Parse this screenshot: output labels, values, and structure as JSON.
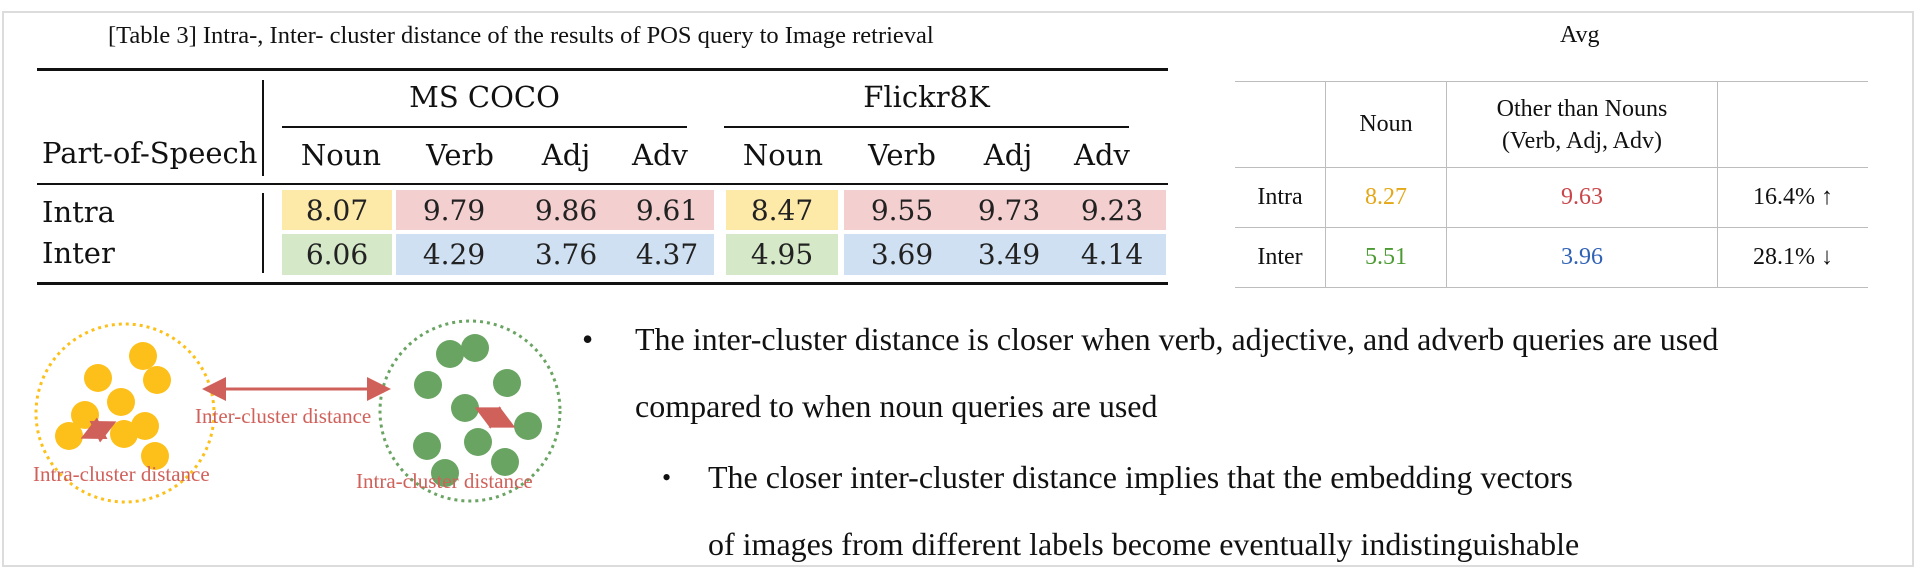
{
  "colors": {
    "yellow_fill": "#fde9a8",
    "pink_fill": "#f3cfcf",
    "green_fill": "#d5e8c8",
    "blue_fill": "#cfe0f2",
    "noun_intra_text": "#e4a717",
    "other_intra_text": "#c9464a",
    "noun_inter_text": "#4c9a33",
    "other_inter_text": "#2f62b5",
    "yellow_cluster": "#fdc01a",
    "green_cluster": "#6aa463",
    "arrow": "#d0605a"
  },
  "table3": {
    "caption": "[Table 3] Intra-, Inter- cluster distance of the results of POS query to Image retrieval",
    "row_header": "Part-of-Speech",
    "datasets": [
      "MS COCO",
      "Flickr8K"
    ],
    "columns": [
      "Noun",
      "Verb",
      "Adj",
      "Adv",
      "Noun",
      "Verb",
      "Adj",
      "Adv"
    ],
    "rows": [
      {
        "label": "Intra",
        "values": [
          "8.07",
          "9.79",
          "9.86",
          "9.61",
          "8.47",
          "9.55",
          "9.73",
          "9.23"
        ]
      },
      {
        "label": "Inter",
        "values": [
          "6.06",
          "4.29",
          "3.76",
          "4.37",
          "4.95",
          "3.69",
          "3.49",
          "4.14"
        ]
      }
    ]
  },
  "avg": {
    "title": "Avg",
    "col_noun": "Noun",
    "col_other_line1": "Other than Nouns",
    "col_other_line2": "(Verb, Adj, Adv)",
    "rows": [
      {
        "label": "Intra",
        "noun": "8.27",
        "other": "9.63",
        "change": "16.4% ↑"
      },
      {
        "label": "Inter",
        "noun": "5.51",
        "other": "3.96",
        "change": "28.1% ↓"
      }
    ]
  },
  "diagram": {
    "inter_label": "Inter-cluster distance",
    "intra_label_left": "Intra-cluster distance",
    "intra_label_right": "Intra-cluster distance"
  },
  "bullets": {
    "main_marker": "•",
    "main_line1": "The inter-cluster distance is closer when verb, adjective, and adverb queries are used",
    "main_line2": "compared to when noun queries are used",
    "sub_marker": "•",
    "sub_line1": "The closer inter-cluster distance implies that the embedding vectors",
    "sub_line2": "of images from different labels become eventually indistinguishable"
  }
}
